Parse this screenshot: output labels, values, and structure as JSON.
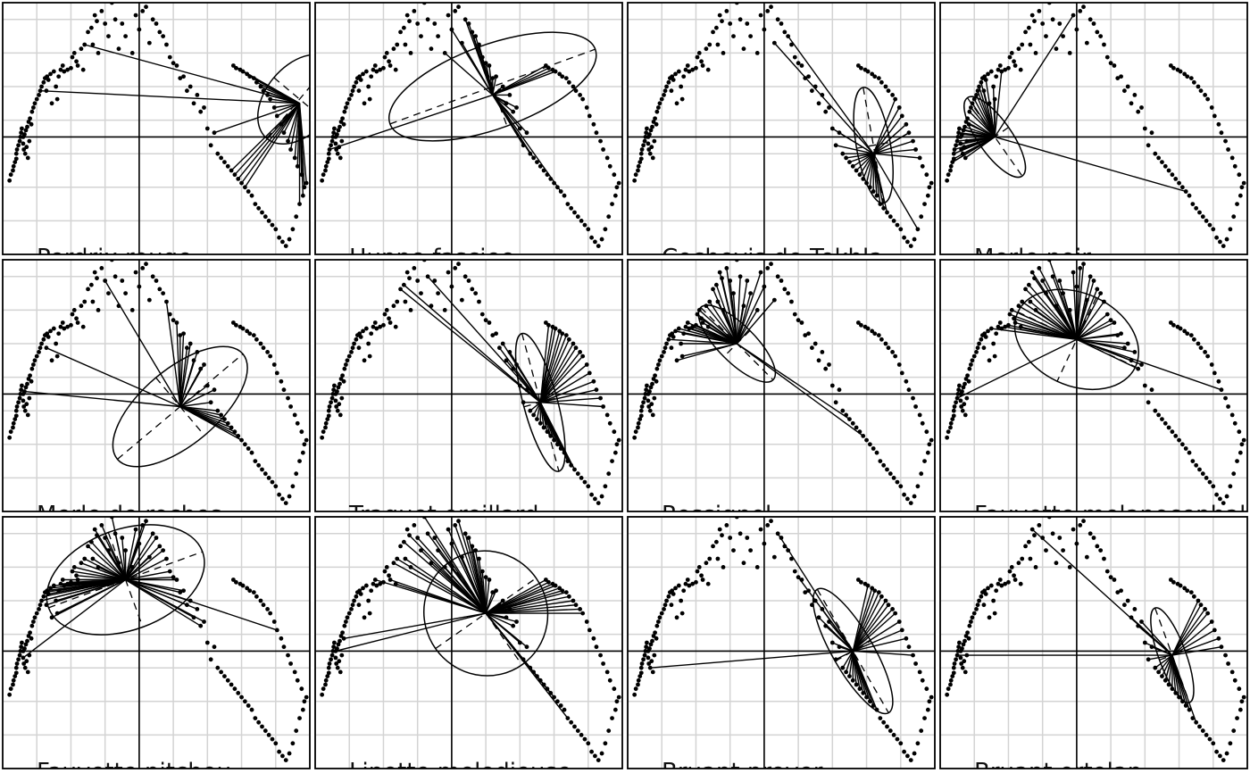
{
  "figure": {
    "style": {
      "grid_color": "#d3d3d3",
      "axis_color": "#000000",
      "point_color": "#000000",
      "frame_color": "#000000",
      "background": "#ffffff"
    }
  },
  "chart_data": {
    "type": "scatter",
    "layout": "4x3 small multiples",
    "xlim": [
      -2,
      2.5
    ],
    "ylim": [
      -1.4,
      1.6
    ],
    "grid": true,
    "axes_lines_at": [
      0,
      0
    ],
    "base_points": {
      "x": [
        -1.9,
        -1.88,
        -1.85,
        -1.84,
        -1.82,
        -1.8,
        -1.8,
        -1.79,
        -1.77,
        -1.75,
        -1.74,
        -1.73,
        -1.72,
        -1.7,
        -1.7,
        -1.69,
        -1.68,
        -1.67,
        -1.66,
        -1.65,
        -1.64,
        -1.63,
        -1.62,
        -1.61,
        -1.6,
        -1.58,
        -1.57,
        -1.55,
        -1.53,
        -1.5,
        -1.47,
        -1.45,
        -1.43,
        -1.4,
        -1.38,
        -1.36,
        -1.35,
        -1.33,
        -1.3,
        -1.28,
        -1.25,
        -1.22,
        -1.2,
        -1.18,
        -1.15,
        -1.12,
        -1.1,
        -1.05,
        -1.0,
        -0.98,
        -0.95,
        -0.92,
        -0.9,
        -0.85,
        -0.82,
        -0.8,
        -0.75,
        -0.7,
        -0.68,
        -0.65,
        -0.62,
        -0.6,
        -0.55,
        -0.5,
        -0.45,
        -0.4,
        -0.35,
        -0.3,
        -0.25,
        -0.2,
        -0.1,
        -0.05,
        0.0,
        0.05,
        0.1,
        0.15,
        0.2,
        0.25,
        0.3,
        0.35,
        0.4,
        0.45,
        0.5,
        0.55,
        0.6,
        0.65,
        0.7,
        0.75,
        0.8,
        0.85,
        0.9,
        0.95,
        1.0,
        1.05,
        1.1,
        1.15,
        1.2,
        1.25,
        1.3,
        1.35,
        1.4,
        1.45,
        1.5,
        1.55,
        1.6,
        1.65,
        1.7,
        1.75,
        1.8,
        1.85,
        1.9,
        1.95,
        2.0,
        2.05,
        2.1,
        2.15,
        2.2,
        2.25,
        2.3,
        2.35,
        2.4,
        2.42,
        2.45,
        2.38,
        2.32,
        2.28,
        2.22,
        2.18,
        2.12,
        2.08,
        2.02,
        1.98,
        1.92,
        1.88,
        1.82,
        1.78,
        1.72,
        1.68,
        1.62,
        1.58,
        1.52,
        1.48,
        1.42,
        1.38
      ],
      "y": [
        -0.52,
        -0.45,
        -0.4,
        -0.35,
        -0.3,
        -0.26,
        -0.2,
        -0.15,
        -0.1,
        -0.05,
        0.0,
        0.05,
        0.1,
        0.0,
        -0.08,
        -0.15,
        0.03,
        -0.2,
        0.08,
        -0.12,
        0.12,
        -0.25,
        0.18,
        -0.05,
        0.22,
        0.15,
        0.3,
        0.35,
        0.4,
        0.45,
        0.5,
        0.55,
        0.6,
        0.65,
        0.7,
        0.55,
        0.72,
        0.68,
        0.75,
        0.4,
        0.78,
        0.6,
        0.45,
        0.72,
        0.8,
        0.85,
        0.78,
        0.8,
        0.82,
        0.95,
        1.0,
        0.9,
        0.85,
        1.05,
        0.8,
        1.1,
        1.25,
        1.3,
        1.1,
        1.45,
        1.38,
        1.0,
        1.5,
        1.35,
        1.2,
        1.6,
        1.4,
        1.05,
        1.35,
        1.2,
        1.0,
        1.45,
        1.28,
        1.5,
        1.55,
        1.12,
        1.4,
        1.35,
        1.25,
        1.2,
        1.1,
        0.95,
        0.88,
        0.85,
        0.7,
        0.72,
        0.55,
        0.6,
        0.4,
        0.5,
        0.3,
        0.35,
        0.1,
        -0.1,
        0.05,
        -0.2,
        -0.25,
        -0.3,
        -0.35,
        -0.4,
        -0.45,
        -0.5,
        -0.55,
        -0.6,
        -0.65,
        -0.7,
        -0.8,
        -0.85,
        -0.9,
        -0.95,
        -1.0,
        -1.05,
        -1.1,
        -1.2,
        -1.25,
        -1.3,
        -1.22,
        -1.1,
        -0.95,
        -0.8,
        -0.7,
        -0.6,
        -0.55,
        -0.45,
        -0.35,
        -0.25,
        -0.15,
        -0.05,
        0.05,
        0.15,
        0.25,
        0.35,
        0.45,
        0.5,
        0.55,
        0.6,
        0.65,
        0.7,
        0.72,
        0.75,
        0.78,
        0.8,
        0.82,
        0.85
      ]
    },
    "panels": [
      {
        "title": "Perdrix rouge",
        "center": [
          2.35,
          0.4
        ],
        "count": 30,
        "ellipse": [
          2.35,
          0.45,
          0.75,
          0.4,
          -50
        ]
      },
      {
        "title": "Huppe fasciee",
        "center": [
          0.6,
          0.5
        ],
        "count": 28,
        "ellipse": [
          0.6,
          0.6,
          1.6,
          0.5,
          -20
        ]
      },
      {
        "title": "Cochevis de Tekhla",
        "center": [
          1.6,
          -0.2
        ],
        "count": 25,
        "ellipse": [
          1.6,
          -0.1,
          0.25,
          0.7,
          -10
        ]
      },
      {
        "title": "Merle noir",
        "center": [
          -1.2,
          0.0
        ],
        "count": 35,
        "ellipse": [
          -1.2,
          0.0,
          0.7,
          0.2,
          55
        ]
      },
      {
        "title": "Merle de roches",
        "center": [
          0.6,
          -0.15
        ],
        "count": 20,
        "ellipse": [
          0.6,
          -0.15,
          1.2,
          0.45,
          -40
        ]
      },
      {
        "title": "Traquet oreillard",
        "center": [
          1.3,
          -0.1
        ],
        "count": 40,
        "ellipse": [
          1.3,
          -0.1,
          0.25,
          0.85,
          -15
        ]
      },
      {
        "title": "Rossignol",
        "center": [
          -0.4,
          0.6
        ],
        "count": 35,
        "ellipse": [
          -0.4,
          0.6,
          0.75,
          0.22,
          45
        ]
      },
      {
        "title": "Fauvette melanocephale",
        "center": [
          0.0,
          0.65
        ],
        "count": 45,
        "ellipse": [
          0.0,
          0.65,
          0.95,
          0.55,
          25
        ]
      },
      {
        "title": "Fauvette pitchou",
        "center": [
          -0.2,
          0.85
        ],
        "count": 60,
        "ellipse": [
          -0.2,
          0.85,
          1.2,
          0.6,
          -20
        ]
      },
      {
        "title": "Linotte melodieuse",
        "center": [
          0.5,
          0.45
        ],
        "count": 60,
        "ellipse": [
          0.5,
          0.45,
          0.9,
          0.75,
          -35
        ]
      },
      {
        "title": "Bruant proyer",
        "center": [
          1.3,
          0.0
        ],
        "count": 30,
        "ellipse": [
          1.3,
          0.0,
          0.3,
          0.85,
          -30
        ]
      },
      {
        "title": "Bruant ortolan",
        "center": [
          1.4,
          -0.05
        ],
        "count": 25,
        "ellipse": [
          1.4,
          -0.05,
          0.2,
          0.6,
          -20
        ]
      }
    ]
  }
}
